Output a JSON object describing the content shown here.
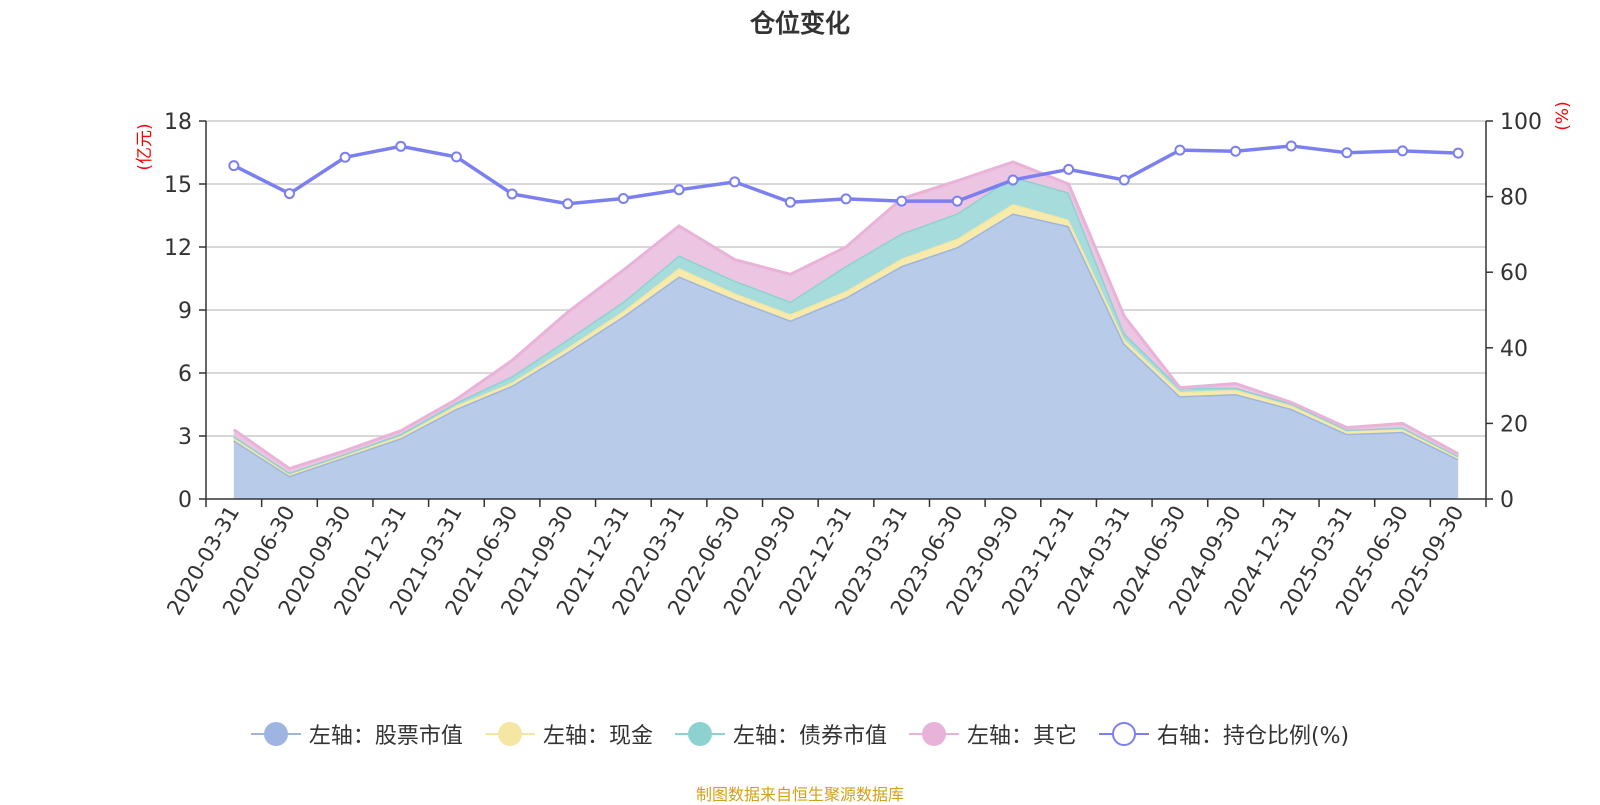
{
  "chart_data": {
    "type": "area",
    "title": "仓位变化",
    "left_axis_unit": "(亿元)",
    "right_axis_unit": "(%)",
    "left_ylim": [
      0,
      18
    ],
    "left_yticks": [
      0,
      3,
      6,
      9,
      12,
      15,
      18
    ],
    "right_ylim": [
      0,
      100
    ],
    "right_yticks": [
      0,
      20,
      40,
      60,
      80,
      100
    ],
    "categories": [
      "2020-03-31",
      "2020-06-30",
      "2020-09-30",
      "2020-12-31",
      "2021-03-31",
      "2021-06-30",
      "2021-09-30",
      "2021-12-31",
      "2022-03-31",
      "2022-06-30",
      "2022-09-30",
      "2022-12-31",
      "2023-03-31",
      "2023-06-30",
      "2023-09-30",
      "2023-12-31",
      "2024-03-31",
      "2024-06-30",
      "2024-09-30",
      "2024-12-31",
      "2025-03-31",
      "2025-06-30",
      "2025-09-30"
    ],
    "series": [
      {
        "name": "左轴：股票市值",
        "axis": "left",
        "kind": "stacked-area",
        "color": "#9db5e0",
        "fill": "#b8cbe9",
        "values": [
          2.8,
          1.1,
          2.0,
          2.9,
          4.3,
          5.4,
          7.0,
          8.7,
          10.6,
          9.5,
          8.5,
          9.6,
          11.1,
          12.0,
          13.6,
          13.0,
          7.4,
          4.9,
          5.0,
          4.3,
          3.1,
          3.2,
          1.9
        ]
      },
      {
        "name": "左轴：现金",
        "axis": "left",
        "kind": "stacked-area",
        "color": "#f5e6a3",
        "fill": "#f7eaab",
        "values": [
          0.1,
          0.1,
          0.1,
          0.1,
          0.15,
          0.15,
          0.2,
          0.25,
          0.4,
          0.3,
          0.3,
          0.3,
          0.35,
          0.4,
          0.45,
          0.3,
          0.2,
          0.2,
          0.2,
          0.15,
          0.15,
          0.15,
          0.1
        ]
      },
      {
        "name": "左轴：债券市值",
        "axis": "left",
        "kind": "stacked-area",
        "color": "#8ed1d1",
        "fill": "#a7dcdc",
        "values": [
          0.1,
          0.05,
          0.05,
          0.1,
          0.15,
          0.3,
          0.4,
          0.45,
          0.6,
          0.6,
          0.6,
          1.2,
          1.2,
          1.2,
          1.3,
          1.3,
          0.3,
          0.2,
          0.1,
          0.1,
          0.05,
          0.05,
          0.05
        ]
      },
      {
        "name": "左轴：其它",
        "axis": "left",
        "kind": "stacked-area",
        "color": "#e9b3d9",
        "fill": "#ebc5e1",
        "values": [
          0.3,
          0.2,
          0.15,
          0.15,
          0.15,
          0.75,
          1.3,
          1.5,
          1.4,
          1.0,
          1.3,
          0.9,
          1.65,
          1.55,
          0.7,
          0.4,
          0.8,
          0.0,
          0.2,
          0.05,
          0.1,
          0.2,
          0.1
        ]
      },
      {
        "name": "右轴：持仓比例(%)",
        "axis": "right",
        "kind": "line",
        "color": "#7b7ff0",
        "values": [
          88.2,
          80.8,
          90.4,
          93.3,
          90.5,
          80.7,
          78.1,
          79.5,
          81.8,
          83.9,
          78.5,
          79.4,
          78.8,
          78.8,
          84.4,
          87.2,
          84.4,
          92.3,
          92.0,
          93.4,
          91.6,
          92.1,
          91.5
        ]
      }
    ],
    "source": "制图数据来自恒生聚源数据库"
  }
}
